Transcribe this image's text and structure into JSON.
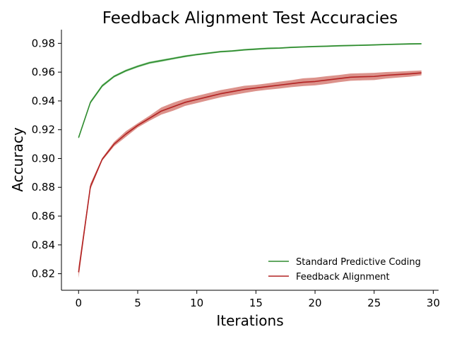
{
  "chart_data": {
    "type": "line",
    "title": "Feedback Alignment Test Accuracies",
    "xlabel": "Iterations",
    "ylabel": "Accuracy",
    "xlim": [
      -1.45,
      30.45
    ],
    "ylim": [
      0.8085,
      0.9895
    ],
    "xticks": [
      0,
      5,
      10,
      15,
      20,
      25,
      30
    ],
    "yticks": [
      0.82,
      0.84,
      0.86,
      0.88,
      0.9,
      0.92,
      0.94,
      0.96,
      0.98
    ],
    "ytick_labels": [
      "0.82",
      "0.84",
      "0.86",
      "0.88",
      "0.90",
      "0.92",
      "0.94",
      "0.96",
      "0.98"
    ],
    "grid": false,
    "legend_position": "lower-right",
    "x": [
      0,
      1,
      2,
      3,
      4,
      5,
      6,
      7,
      8,
      9,
      10,
      11,
      12,
      13,
      14,
      15,
      16,
      17,
      18,
      19,
      20,
      21,
      22,
      23,
      24,
      25,
      26,
      27,
      28,
      29
    ],
    "series": [
      {
        "name": "Standard Predictive Coding",
        "color": "#2e8b2e",
        "band_color": "#4caf50",
        "values": [
          0.9145,
          0.939,
          0.9505,
          0.957,
          0.961,
          0.964,
          0.9665,
          0.968,
          0.9695,
          0.971,
          0.9722,
          0.9732,
          0.9742,
          0.9747,
          0.9755,
          0.976,
          0.9765,
          0.9767,
          0.9772,
          0.9775,
          0.9778,
          0.978,
          0.9783,
          0.9785,
          0.9787,
          0.9789,
          0.9792,
          0.9794,
          0.9796,
          0.9797
        ],
        "lower": [
          0.9135,
          0.938,
          0.9495,
          0.9562,
          0.9602,
          0.9632,
          0.9657,
          0.9672,
          0.9688,
          0.9703,
          0.9716,
          0.9726,
          0.9736,
          0.9741,
          0.9749,
          0.9754,
          0.9759,
          0.9762,
          0.9767,
          0.977,
          0.9773,
          0.9775,
          0.9778,
          0.978,
          0.9782,
          0.9784,
          0.9787,
          0.9789,
          0.9791,
          0.9792
        ],
        "upper": [
          0.9155,
          0.94,
          0.9515,
          0.9578,
          0.9618,
          0.9648,
          0.9673,
          0.9688,
          0.9702,
          0.9717,
          0.9728,
          0.9738,
          0.9748,
          0.9753,
          0.9761,
          0.9766,
          0.9771,
          0.9772,
          0.9777,
          0.978,
          0.9783,
          0.9785,
          0.9788,
          0.979,
          0.9792,
          0.9794,
          0.9797,
          0.9799,
          0.9801,
          0.9802
        ]
      },
      {
        "name": "Feedback Alignment",
        "color": "#b22222",
        "band_color": "#c0392b",
        "values": [
          0.821,
          0.8805,
          0.8995,
          0.91,
          0.917,
          0.923,
          0.928,
          0.933,
          0.936,
          0.939,
          0.941,
          0.943,
          0.945,
          0.9465,
          0.948,
          0.949,
          0.95,
          0.951,
          0.952,
          0.953,
          0.9535,
          0.9545,
          0.9555,
          0.9565,
          0.9568,
          0.957,
          0.9578,
          0.9583,
          0.9588,
          0.9595
        ],
        "lower": [
          0.817,
          0.8785,
          0.8985,
          0.9085,
          0.915,
          0.9215,
          0.9262,
          0.9305,
          0.9332,
          0.9365,
          0.9385,
          0.9405,
          0.9425,
          0.944,
          0.9455,
          0.9468,
          0.9478,
          0.9486,
          0.9496,
          0.9503,
          0.9508,
          0.9518,
          0.953,
          0.954,
          0.9543,
          0.9545,
          0.9555,
          0.9562,
          0.9568,
          0.9578
        ],
        "upper": [
          0.825,
          0.8825,
          0.9005,
          0.9115,
          0.919,
          0.9245,
          0.9298,
          0.9355,
          0.9388,
          0.9415,
          0.9435,
          0.9455,
          0.9475,
          0.949,
          0.9505,
          0.9512,
          0.9522,
          0.9534,
          0.9544,
          0.9557,
          0.9562,
          0.9572,
          0.958,
          0.959,
          0.9593,
          0.9595,
          0.9601,
          0.9604,
          0.9608,
          0.9612
        ]
      }
    ]
  }
}
